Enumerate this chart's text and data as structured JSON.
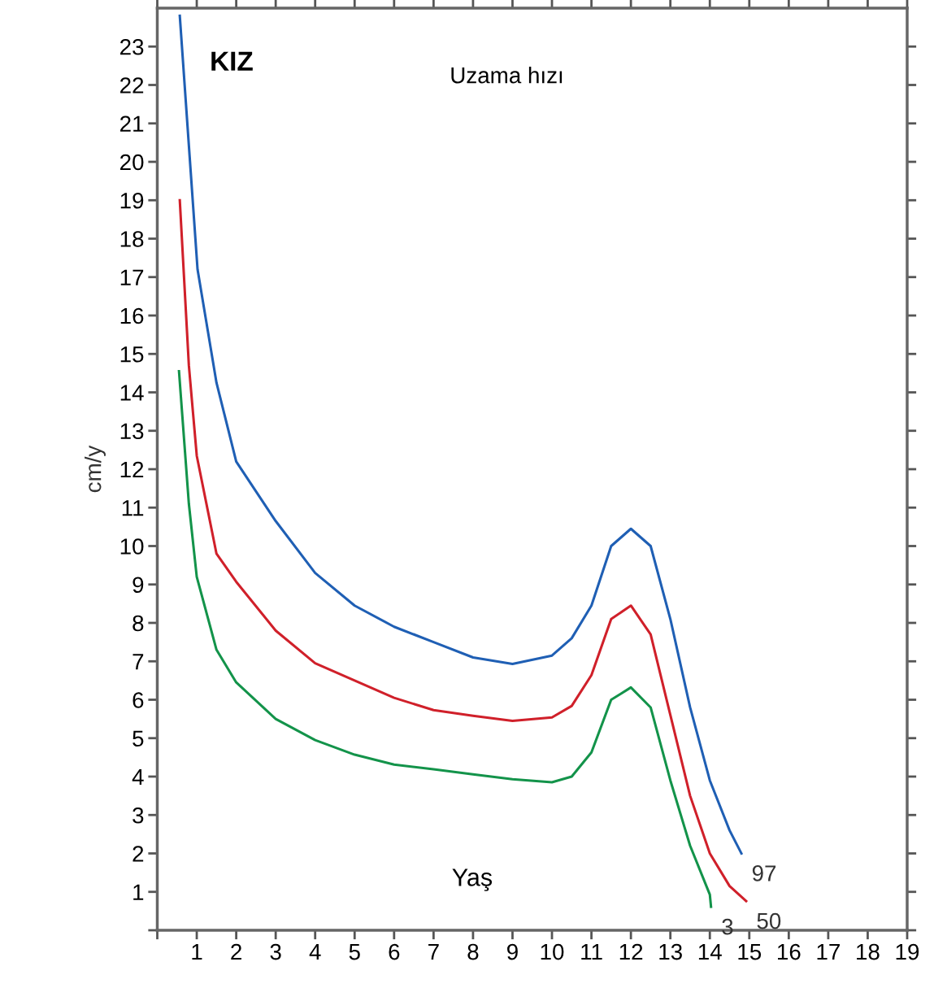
{
  "chart_data": {
    "type": "line",
    "title": "KIZ",
    "subtitle": "Uzama hızı",
    "xlabel": "Yaş",
    "ylabel": "cm/y",
    "xlim": [
      0,
      19
    ],
    "ylim": [
      0,
      24
    ],
    "xticks": [
      {
        "value": 0,
        "label": null
      },
      1,
      2,
      3,
      4,
      5,
      6,
      7,
      8,
      9,
      10,
      11,
      12,
      13,
      14,
      15,
      16,
      17,
      18,
      19
    ],
    "yticks": [
      {
        "value": 0,
        "label": null
      },
      1,
      2,
      3,
      4,
      5,
      6,
      7,
      8,
      9,
      10,
      11,
      12,
      13,
      14,
      15,
      16,
      17,
      18,
      19,
      20,
      21,
      22,
      23
    ],
    "grid": false,
    "legend": false,
    "marker": "none",
    "line_style": "solid",
    "series": [
      {
        "name": "97",
        "color": "#1f5fb4",
        "x": [
          0.57,
          1.02,
          1.5,
          2,
          3,
          4,
          5,
          6,
          7,
          8,
          9,
          10,
          10.5,
          11,
          11.5,
          12,
          12.5,
          13,
          13.5,
          14,
          14.5,
          14.8
        ],
        "values": [
          23.8,
          17.2,
          14.25,
          12.2,
          10.65,
          9.3,
          8.45,
          7.9,
          7.5,
          7.1,
          6.93,
          7.15,
          7.6,
          8.45,
          10.0,
          10.45,
          10.0,
          8.1,
          5.8,
          3.9,
          2.6,
          2.0
        ]
      },
      {
        "name": "50",
        "color": "#d0202a",
        "x": [
          0.57,
          0.8,
          1,
          1.5,
          2,
          3,
          4,
          5,
          6,
          7,
          8,
          9,
          10,
          10.5,
          11,
          11.5,
          12,
          12.5,
          13,
          13.5,
          14,
          14.5,
          14.92
        ],
        "values": [
          19.0,
          14.7,
          12.35,
          9.8,
          9.07,
          7.8,
          6.95,
          6.5,
          6.05,
          5.73,
          5.58,
          5.45,
          5.54,
          5.84,
          6.64,
          8.1,
          8.45,
          7.7,
          5.6,
          3.5,
          2.0,
          1.15,
          0.76
        ]
      },
      {
        "name": "3",
        "color": "#13934a",
        "x": [
          0.55,
          0.8,
          1,
          1.5,
          2,
          3,
          4,
          5,
          6,
          7,
          8,
          9,
          10,
          10.5,
          11,
          11.5,
          12,
          12.5,
          13,
          13.5,
          14,
          14.03
        ],
        "values": [
          14.55,
          11.1,
          9.2,
          7.3,
          6.45,
          5.5,
          4.95,
          4.57,
          4.31,
          4.19,
          4.06,
          3.93,
          3.85,
          4.0,
          4.63,
          6.0,
          6.32,
          5.8,
          3.9,
          2.2,
          0.93,
          0.61
        ]
      }
    ]
  }
}
